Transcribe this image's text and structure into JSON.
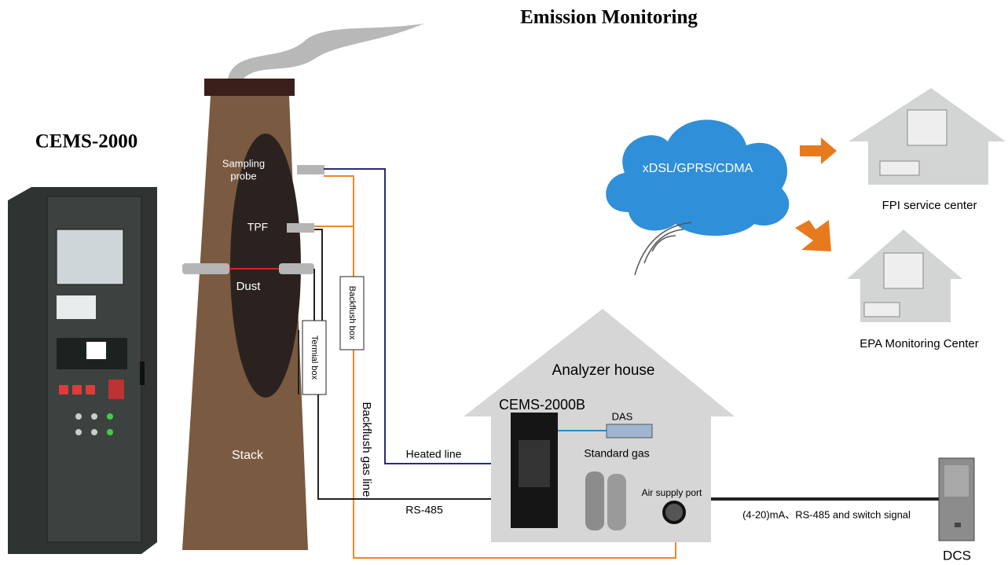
{
  "title": "Emission Monitoring",
  "product_label": "CEMS-2000",
  "stack": {
    "sampling_probe": [
      "Sampling",
      "probe"
    ],
    "tpf": "TPF",
    "dust": "Dust",
    "stack": "Stack",
    "backflush_box": "Backflush box",
    "terminal_box": "Termial box",
    "backflush_gas_line": "Backflush gas line"
  },
  "lines": {
    "heated_line": "Heated line",
    "rs485": "RS-485",
    "signal": "(4-20)mA、RS-485 and switch signal"
  },
  "network": {
    "cloud": "xDSL/GPRS/CDMA",
    "fpi": "FPI service center",
    "epa": "EPA Monitoring Center"
  },
  "house": {
    "title": "Analyzer house",
    "analyzer": "CEMS-2000B",
    "das": "DAS",
    "standard_gas": "Standard gas",
    "air_supply": "Air supply port"
  },
  "dcs": "DCS"
}
